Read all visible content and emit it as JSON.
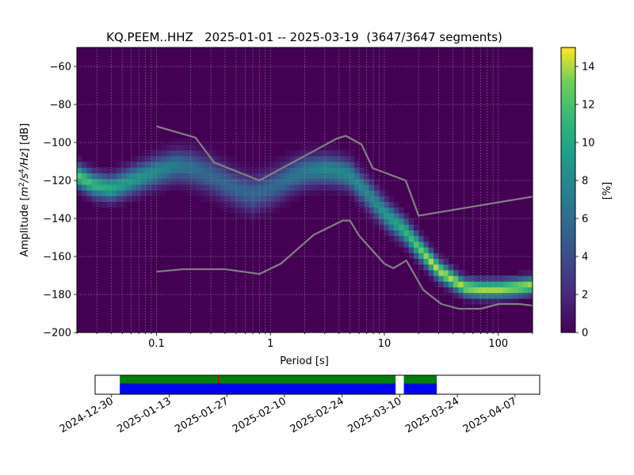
{
  "chart_data": [
    {
      "type": "heatmap",
      "title": "KQ.PEEM..HHZ   2025-01-01 -- 2025-03-19  (3647/3647 segments)",
      "xlabel": "Period [s]",
      "ylabel_parts": [
        "Amplitude [",
        "m",
        "2",
        "/s",
        "4",
        "/Hz",
        "] [dB]"
      ],
      "x_scale": "log",
      "xlim": [
        0.02,
        200
      ],
      "ylim": [
        -200,
        -50
      ],
      "xticks": [
        {
          "value": 0.1,
          "label": "0.1"
        },
        {
          "value": 1,
          "label": "1"
        },
        {
          "value": 10,
          "label": "10"
        },
        {
          "value": 100,
          "label": "100"
        }
      ],
      "yticks": [
        {
          "value": -60,
          "label": "−60"
        },
        {
          "value": -80,
          "label": "−80"
        },
        {
          "value": -100,
          "label": "−100"
        },
        {
          "value": -120,
          "label": "−120"
        },
        {
          "value": -140,
          "label": "−140"
        },
        {
          "value": -160,
          "label": "−160"
        },
        {
          "value": -180,
          "label": "−180"
        },
        {
          "value": -200,
          "label": "−200"
        }
      ],
      "grid": true,
      "colormap": "viridis",
      "colorbar": {
        "label": "[%]",
        "range": [
          0,
          15
        ],
        "ticks": [
          {
            "value": 0,
            "label": "0"
          },
          {
            "value": 2,
            "label": "2"
          },
          {
            "value": 4,
            "label": "4"
          },
          {
            "value": 6,
            "label": "6"
          },
          {
            "value": 8,
            "label": "8"
          },
          {
            "value": 10,
            "label": "10"
          },
          {
            "value": 12,
            "label": "12"
          },
          {
            "value": 14,
            "label": "14"
          }
        ]
      },
      "density_mode_curve": [
        [
          0.02,
          -117
        ],
        [
          0.028,
          -122
        ],
        [
          0.04,
          -124
        ],
        [
          0.06,
          -120
        ],
        [
          0.1,
          -115
        ],
        [
          0.15,
          -112
        ],
        [
          0.2,
          -113
        ],
        [
          0.3,
          -117
        ],
        [
          0.5,
          -124
        ],
        [
          0.7,
          -127
        ],
        [
          1.0,
          -124
        ],
        [
          1.5,
          -118
        ],
        [
          2.0,
          -115
        ],
        [
          3.0,
          -114
        ],
        [
          4.0,
          -115
        ],
        [
          5.0,
          -117
        ],
        [
          6.0,
          -122
        ],
        [
          8.0,
          -130
        ],
        [
          10,
          -137
        ],
        [
          15,
          -146
        ],
        [
          20,
          -155
        ],
        [
          30,
          -167
        ],
        [
          50,
          -176
        ],
        [
          70,
          -177
        ],
        [
          100,
          -177
        ],
        [
          150,
          -176
        ],
        [
          200,
          -175
        ]
      ],
      "density_band_width_db": [
        [
          0.02,
          4
        ],
        [
          0.1,
          5
        ],
        [
          0.3,
          6
        ],
        [
          1.0,
          6
        ],
        [
          3.0,
          5
        ],
        [
          8.0,
          5
        ],
        [
          20,
          4
        ],
        [
          50,
          3
        ],
        [
          200,
          3
        ]
      ],
      "density_peak_percent": 14,
      "series": [
        {
          "role": "high-noise-model",
          "color": "#808080",
          "points": [
            [
              0.1,
              -91.5
            ],
            [
              0.22,
              -97.4
            ],
            [
              0.32,
              -110.5
            ],
            [
              0.8,
              -120
            ],
            [
              3.8,
              -98
            ],
            [
              4.6,
              -96.5
            ],
            [
              6.3,
              -101
            ],
            [
              7.9,
              -113.5
            ],
            [
              15.4,
              -120
            ],
            [
              20,
              -138.5
            ],
            [
              354.8,
              -126
            ]
          ]
        },
        {
          "role": "low-noise-model",
          "color": "#808080",
          "points": [
            [
              0.1,
              -168
            ],
            [
              0.17,
              -166.7
            ],
            [
              0.4,
              -166.7
            ],
            [
              0.8,
              -169.2
            ],
            [
              1.24,
              -163.7
            ],
            [
              2.4,
              -148.6
            ],
            [
              4.3,
              -141.1
            ],
            [
              5.0,
              -141.1
            ],
            [
              6.0,
              -149
            ],
            [
              10,
              -163.8
            ],
            [
              12,
              -166.2
            ],
            [
              15.6,
              -162.1
            ],
            [
              21.9,
              -177.5
            ],
            [
              31.6,
              -185
            ],
            [
              45,
              -187.5
            ],
            [
              70,
              -187.5
            ],
            [
              101,
              -185
            ],
            [
              154,
              -185
            ],
            [
              328,
              -187.5
            ]
          ]
        }
      ]
    },
    {
      "type": "timeline",
      "xaxis": "date",
      "xlim": [
        "2024-12-26",
        "2025-04-13"
      ],
      "xticks": [
        "2024-12-30",
        "2025-01-13",
        "2025-01-27",
        "2025-02-10",
        "2025-02-24",
        "2025-03-10",
        "2025-03-24",
        "2025-04-07"
      ],
      "rows": [
        {
          "role": "used-segments",
          "color": "#008000",
          "spans": [
            [
              "2025-01-01",
              "2025-03-09"
            ],
            [
              "2025-03-11",
              "2025-03-19"
            ]
          ]
        },
        {
          "role": "data-coverage",
          "color": "#0000ff",
          "spans": [
            [
              "2025-01-01",
              "2025-03-09"
            ],
            [
              "2025-03-11",
              "2025-03-19"
            ]
          ]
        }
      ],
      "markers": [
        {
          "date": "2025-01-25",
          "color": "#cc0000"
        }
      ]
    }
  ]
}
